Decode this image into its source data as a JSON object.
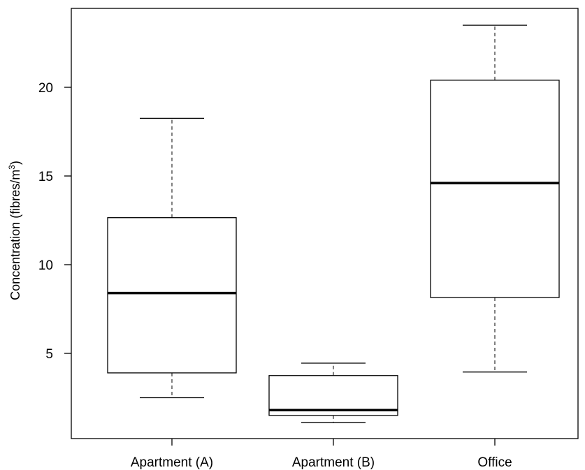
{
  "chart_data": {
    "type": "boxplot",
    "ylabel": "Concentration (fibres/m",
    "ylabel_sup": "3",
    "ylabel_close": ")",
    "yticks": [
      5,
      10,
      15,
      20
    ],
    "ytick_labels": [
      "5",
      "10",
      "15",
      "20"
    ],
    "ylim": [
      0.0,
      24.5
    ],
    "categories": [
      "Apartment (A)",
      "Apartment (B)",
      "Office"
    ],
    "boxes": [
      {
        "whisker_low": 2.5,
        "q1": 3.9,
        "median": 8.4,
        "q3": 12.65,
        "whisker_high": 18.25
      },
      {
        "whisker_low": 1.1,
        "q1": 1.5,
        "median": 1.8,
        "q3": 3.75,
        "whisker_high": 4.45
      },
      {
        "whisker_low": 3.95,
        "q1": 8.15,
        "median": 14.6,
        "q3": 20.4,
        "whisker_high": 23.5
      }
    ],
    "grid": false,
    "legend": "none"
  }
}
